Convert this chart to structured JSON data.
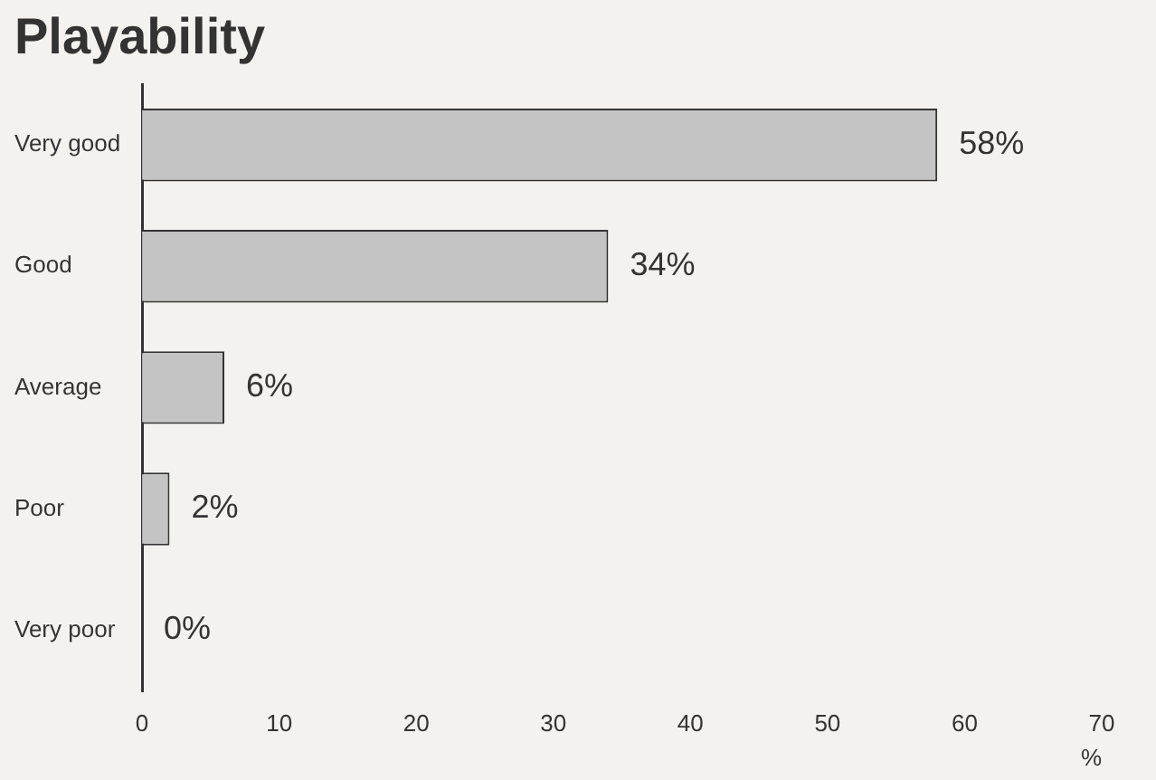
{
  "chart_data": {
    "type": "bar",
    "orientation": "horizontal",
    "title": "Playability",
    "xlabel": "%",
    "categories": [
      "Very good",
      "Good",
      "Average",
      "Poor",
      "Very poor"
    ],
    "values": [
      58,
      34,
      6,
      2,
      0
    ],
    "value_labels": [
      "58%",
      "34%",
      "6%",
      "2%",
      "0%"
    ],
    "color": "#c4c4c4",
    "xlim": [
      0,
      70
    ],
    "xticks": [
      0,
      10,
      20,
      30,
      40,
      50,
      60,
      70
    ],
    "grid": false,
    "legend": false
  }
}
